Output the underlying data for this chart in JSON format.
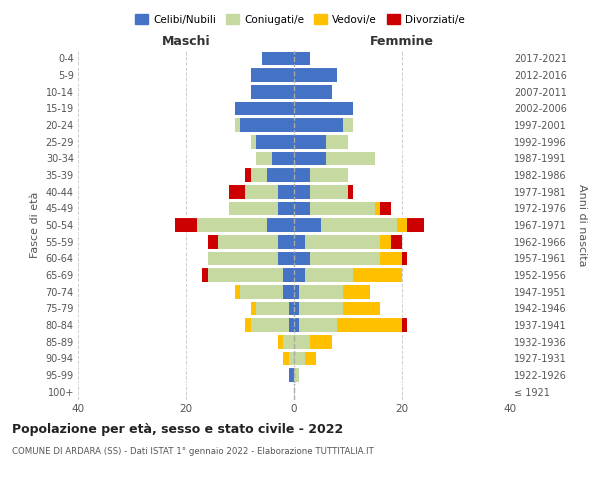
{
  "age_groups": [
    "100+",
    "95-99",
    "90-94",
    "85-89",
    "80-84",
    "75-79",
    "70-74",
    "65-69",
    "60-64",
    "55-59",
    "50-54",
    "45-49",
    "40-44",
    "35-39",
    "30-34",
    "25-29",
    "20-24",
    "15-19",
    "10-14",
    "5-9",
    "0-4"
  ],
  "birth_years": [
    "≤ 1921",
    "1922-1926",
    "1927-1931",
    "1932-1936",
    "1937-1941",
    "1942-1946",
    "1947-1951",
    "1952-1956",
    "1957-1961",
    "1962-1966",
    "1967-1971",
    "1972-1976",
    "1977-1981",
    "1982-1986",
    "1987-1991",
    "1992-1996",
    "1997-2001",
    "2002-2006",
    "2007-2011",
    "2012-2016",
    "2017-2021"
  ],
  "male": {
    "celibi": [
      0,
      1,
      0,
      0,
      1,
      1,
      2,
      2,
      3,
      3,
      5,
      3,
      3,
      5,
      4,
      7,
      10,
      11,
      8,
      8,
      6
    ],
    "coniugati": [
      0,
      0,
      1,
      2,
      7,
      6,
      8,
      14,
      13,
      11,
      13,
      9,
      6,
      3,
      3,
      1,
      1,
      0,
      0,
      0,
      0
    ],
    "vedovi": [
      0,
      0,
      1,
      1,
      1,
      1,
      1,
      0,
      0,
      0,
      0,
      0,
      0,
      0,
      0,
      0,
      0,
      0,
      0,
      0,
      0
    ],
    "divorziati": [
      0,
      0,
      0,
      0,
      0,
      0,
      0,
      1,
      0,
      2,
      4,
      0,
      3,
      1,
      0,
      0,
      0,
      0,
      0,
      0,
      0
    ]
  },
  "female": {
    "nubili": [
      0,
      0,
      0,
      0,
      1,
      1,
      1,
      2,
      3,
      2,
      5,
      3,
      3,
      3,
      6,
      6,
      9,
      11,
      7,
      8,
      3
    ],
    "coniugate": [
      0,
      1,
      2,
      3,
      7,
      8,
      8,
      9,
      13,
      14,
      14,
      12,
      7,
      7,
      9,
      4,
      2,
      0,
      0,
      0,
      0
    ],
    "vedove": [
      0,
      0,
      2,
      4,
      12,
      7,
      5,
      9,
      4,
      2,
      2,
      1,
      0,
      0,
      0,
      0,
      0,
      0,
      0,
      0,
      0
    ],
    "divorziate": [
      0,
      0,
      0,
      0,
      1,
      0,
      0,
      0,
      1,
      2,
      3,
      2,
      1,
      0,
      0,
      0,
      0,
      0,
      0,
      0,
      0
    ]
  },
  "colors": {
    "celibi": "#4472c4",
    "coniugati": "#c5d9a0",
    "vedovi": "#ffc000",
    "divorziati": "#cc0000"
  },
  "xlim": 40,
  "title": "Popolazione per età, sesso e stato civile - 2022",
  "subtitle": "COMUNE DI ARDARA (SS) - Dati ISTAT 1° gennaio 2022 - Elaborazione TUTTITALIA.IT",
  "ylabel_left": "Fasce di età",
  "ylabel_right": "Anni di nascita",
  "xlabel_maschi": "Maschi",
  "xlabel_femmine": "Femmine",
  "bg_color": "#ffffff",
  "grid_color": "#cccccc"
}
